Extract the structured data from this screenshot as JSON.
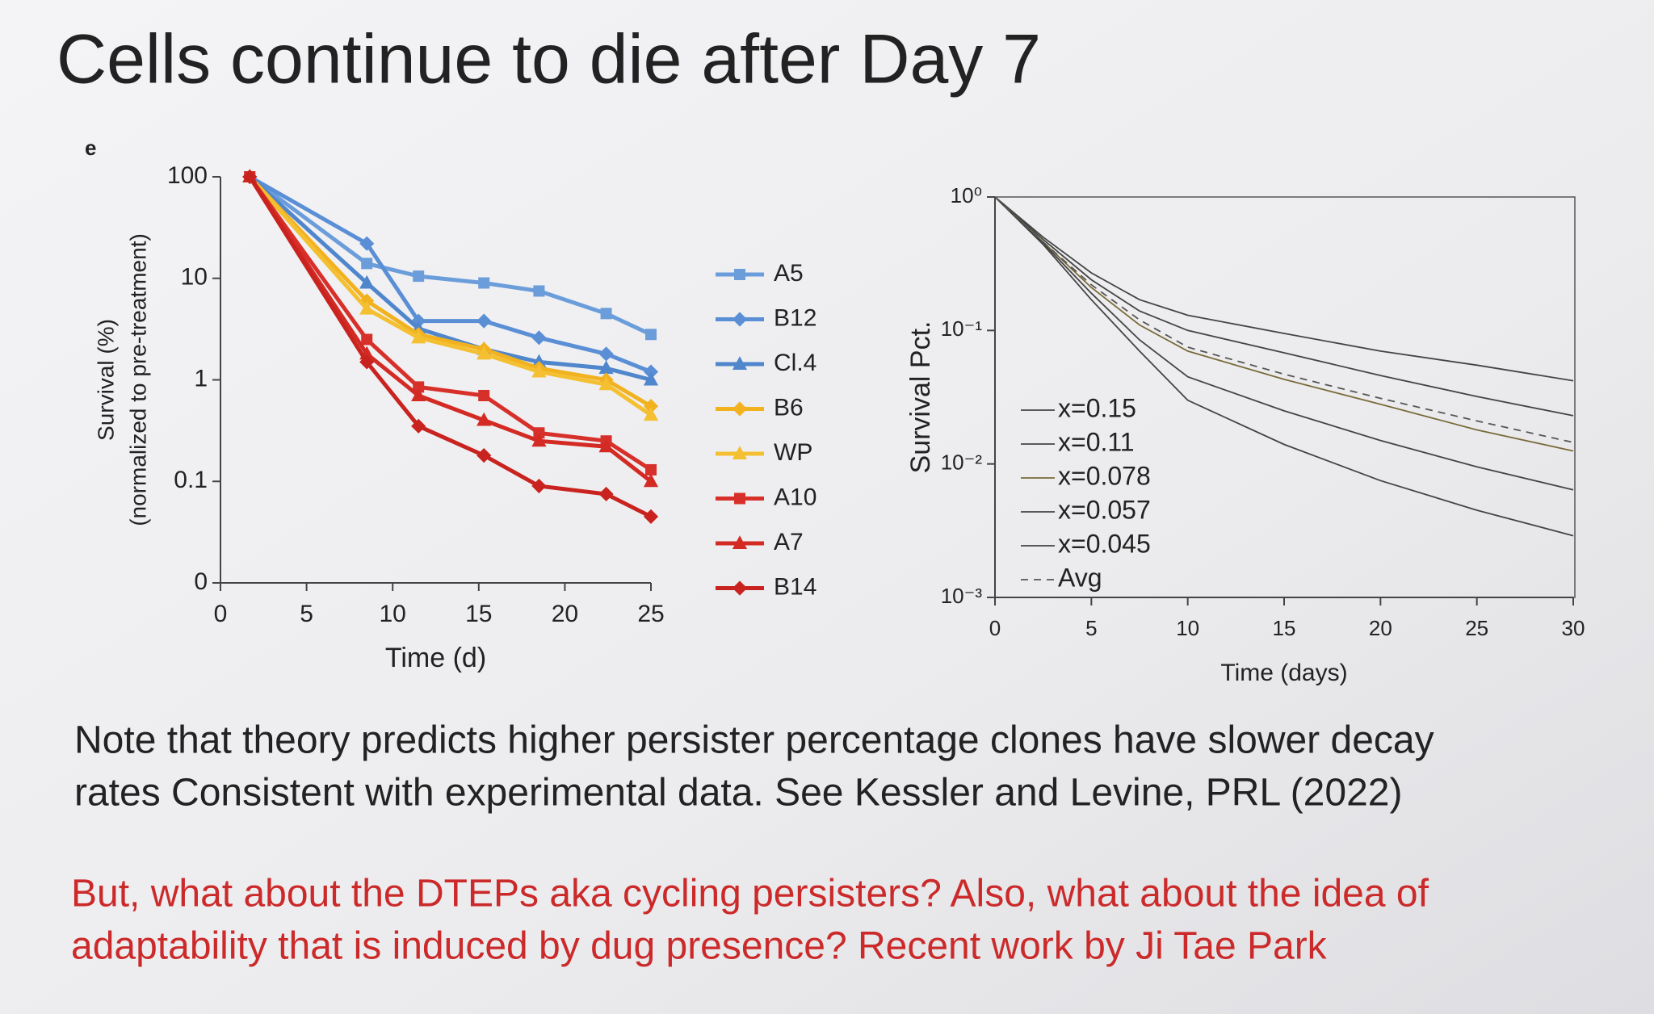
{
  "title": "Cells continue to die after Day 7",
  "panel_label": "e",
  "note": [
    "Note that theory predicts higher persister percentage clones have slower decay",
    "rates Consistent with experimental data. See Kessler and Levine, PRL (2022)"
  ],
  "question": [
    "But, what about the DTEPs aka cycling persisters? Also, what about the idea of",
    "adaptability that is induced by dug presence? Recent work by Ji Tae Park"
  ],
  "chart_data": [
    {
      "type": "line",
      "xlabel": "Time (d)",
      "ylabel": [
        "Survival (%)",
        "(normalized to pre-treatment)"
      ],
      "x": [
        1.7,
        8.5,
        11.5,
        15.3,
        18.5,
        22.4,
        25
      ],
      "xlim": [
        0,
        25
      ],
      "xticks": [
        0,
        5,
        10,
        15,
        20,
        25
      ],
      "ylim": [
        0.01,
        100
      ],
      "yscale": "log",
      "yticks": [
        {
          "value": 0.01,
          "label": "0"
        },
        0.1,
        1,
        10,
        100
      ],
      "legend": "right",
      "series": [
        {
          "name": "A5",
          "color": "#6b9ddb",
          "marker": "square",
          "values": [
            100,
            14,
            10.5,
            9,
            7.5,
            4.5,
            2.8
          ]
        },
        {
          "name": "B12",
          "color": "#5a8fd6",
          "marker": "diamond",
          "values": [
            100,
            22,
            3.8,
            3.8,
            2.6,
            1.8,
            1.2
          ]
        },
        {
          "name": "Cl.4",
          "color": "#4f86cc",
          "marker": "triangle",
          "values": [
            100,
            9,
            3.2,
            2,
            1.5,
            1.3,
            1.0
          ]
        },
        {
          "name": "B6",
          "color": "#f2b21f",
          "marker": "diamond",
          "values": [
            100,
            6,
            2.8,
            2,
            1.3,
            1.0,
            0.55
          ]
        },
        {
          "name": "WP",
          "color": "#f4c032",
          "marker": "triangle",
          "values": [
            100,
            5,
            2.6,
            1.8,
            1.2,
            0.9,
            0.45
          ]
        },
        {
          "name": "A10",
          "color": "#d7302a",
          "marker": "square",
          "values": [
            100,
            2.5,
            0.85,
            0.7,
            0.3,
            0.25,
            0.13
          ]
        },
        {
          "name": "A7",
          "color": "#d42a24",
          "marker": "triangle",
          "values": [
            100,
            1.8,
            0.7,
            0.4,
            0.25,
            0.22,
            0.1
          ]
        },
        {
          "name": "B14",
          "color": "#c9231f",
          "marker": "diamond",
          "values": [
            100,
            1.5,
            0.35,
            0.18,
            0.09,
            0.075,
            0.045
          ]
        }
      ]
    },
    {
      "type": "line",
      "xlabel": "Time (days)",
      "ylabel": "Survival Pct.",
      "x": [
        0,
        2.5,
        5,
        7.5,
        10,
        15,
        20,
        25,
        30
      ],
      "xlim": [
        0,
        30
      ],
      "xticks": [
        0,
        5,
        10,
        15,
        20,
        25,
        30
      ],
      "ylim": [
        0.001,
        1
      ],
      "yscale": "log",
      "yticks": [
        {
          "value": 0.001,
          "label": "10⁻³"
        },
        {
          "value": 0.01,
          "label": "10⁻²"
        },
        {
          "value": 0.1,
          "label": "10⁻¹"
        },
        {
          "value": 1,
          "label": "10⁰"
        }
      ],
      "legend": "inside-left",
      "series": [
        {
          "name": "x=0.15",
          "color": "#444444",
          "linestyle": "solid",
          "values": [
            1,
            0.5,
            0.27,
            0.17,
            0.13,
            0.095,
            0.07,
            0.055,
            0.042
          ]
        },
        {
          "name": "x=0.11",
          "color": "#444444",
          "linestyle": "solid",
          "values": [
            1,
            0.48,
            0.24,
            0.14,
            0.1,
            0.068,
            0.046,
            0.032,
            0.023
          ]
        },
        {
          "name": "x=0.078",
          "color": "#7a6a3a",
          "linestyle": "solid",
          "values": [
            1,
            0.46,
            0.21,
            0.11,
            0.07,
            0.043,
            0.028,
            0.018,
            0.0125
          ]
        },
        {
          "name": "x=0.057",
          "color": "#444444",
          "linestyle": "solid",
          "values": [
            1,
            0.45,
            0.19,
            0.085,
            0.045,
            0.025,
            0.015,
            0.0095,
            0.0064
          ]
        },
        {
          "name": "x=0.045",
          "color": "#444444",
          "linestyle": "solid",
          "values": [
            1,
            0.44,
            0.17,
            0.07,
            0.03,
            0.014,
            0.0075,
            0.0045,
            0.0029
          ]
        },
        {
          "name": "Avg",
          "color": "#555555",
          "linestyle": "dashed",
          "values": [
            1,
            0.46,
            0.22,
            0.12,
            0.075,
            0.047,
            0.031,
            0.021,
            0.0145
          ]
        }
      ]
    }
  ]
}
